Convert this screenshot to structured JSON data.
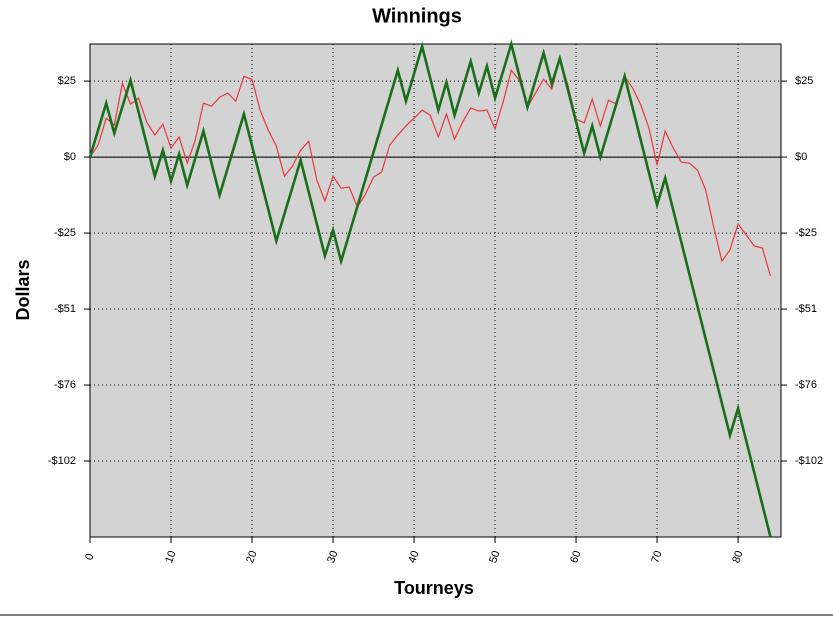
{
  "chart_data": {
    "type": "line",
    "title": "Winnings",
    "x_label": "Tourneys",
    "y_label": "Dollars",
    "xlim": [
      0,
      85.3
    ],
    "xticks": [
      0,
      10,
      20,
      30,
      40,
      50,
      60,
      70,
      80
    ],
    "ylim": [
      -127,
      37.8
    ],
    "yticks": [
      {
        "value": 25.4,
        "label": "$25"
      },
      {
        "value": 0,
        "label": "$0"
      },
      {
        "value": -25.4,
        "label": "-$25"
      },
      {
        "value": -50.8,
        "label": "-$51"
      },
      {
        "value": -76.2,
        "label": "-$76"
      },
      {
        "value": -101.6,
        "label": "-$102"
      }
    ],
    "grid": true,
    "zero_line": true,
    "series": [
      {
        "color": "#e83838",
        "width": 1.2,
        "x": [
          0,
          1,
          2,
          3,
          4,
          5,
          6,
          7,
          8,
          9,
          10,
          11,
          12,
          13,
          14,
          15,
          16,
          17,
          18,
          19,
          20,
          21,
          22,
          23,
          24,
          25,
          26,
          27,
          28,
          29,
          30,
          31,
          32,
          33,
          34,
          35,
          36,
          37,
          38,
          39,
          40,
          41,
          42,
          43,
          44,
          45,
          46,
          47,
          48,
          49,
          50,
          51,
          52,
          53,
          54,
          55,
          56,
          57,
          58,
          59,
          60,
          61,
          62,
          63,
          64,
          65,
          66,
          67,
          68,
          69,
          70,
          71,
          72,
          73,
          74,
          75,
          76,
          77,
          78,
          79,
          80,
          81,
          82,
          83,
          84
        ],
        "values": [
          0,
          4,
          13,
          10.7,
          24.7,
          17.7,
          19.7,
          11.7,
          7.4,
          11,
          3,
          6.7,
          -2,
          5.7,
          18,
          17,
          20,
          21.4,
          18.7,
          27,
          26,
          15.7,
          9,
          3.7,
          -6.4,
          -3,
          2.3,
          5.3,
          -7.7,
          -14.7,
          -6.4,
          -10.4,
          -10,
          -16.7,
          -12.4,
          -6.7,
          -5,
          4,
          7.4,
          10.4,
          13,
          15.7,
          14,
          6.7,
          14.4,
          6,
          11.7,
          16.4,
          15.4,
          15.7,
          9.4,
          18.4,
          29,
          25.7,
          16.7,
          21.4,
          26,
          22.7,
          33,
          24,
          12.7,
          11.4,
          19.4,
          10.4,
          19,
          17.7,
          27,
          23,
          17.4,
          9.7,
          -2.7,
          8.7,
          3,
          -1.7,
          -2,
          -4.4,
          -11,
          -23.4,
          -34.8,
          -31,
          -22.4,
          -26,
          -29.7,
          -30.4,
          -39.8
        ]
      },
      {
        "color": "#1a6e1a",
        "width": 2.6,
        "x": [
          0,
          2,
          3,
          5,
          8,
          9,
          10,
          11,
          12,
          14,
          16,
          19,
          23,
          26,
          29,
          30,
          31,
          38,
          39,
          41,
          43,
          44,
          45,
          47,
          48,
          49,
          50,
          52,
          54,
          56,
          57,
          58,
          61,
          62,
          63,
          66,
          70,
          71,
          79,
          80,
          84
        ],
        "values": [
          0,
          18,
          8,
          25.7,
          -6.4,
          2.3,
          -8,
          1,
          -9.4,
          8.7,
          -12.7,
          14.4,
          -28,
          -1,
          -33,
          -24.4,
          -34.8,
          29,
          18.7,
          37,
          15.7,
          25,
          14,
          32,
          21.4,
          30.4,
          19.7,
          37.8,
          16.7,
          34.8,
          24.4,
          33,
          1.3,
          10.4,
          0,
          27,
          -16,
          -7,
          -93,
          -84,
          -127
        ]
      }
    ]
  }
}
